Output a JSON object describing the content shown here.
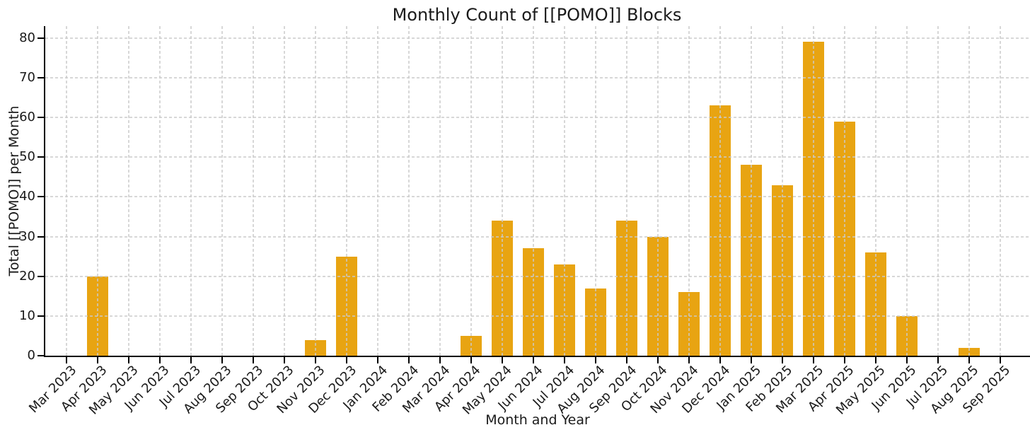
{
  "chart_data": {
    "type": "bar",
    "title": "Monthly Count of [[POMO]] Blocks",
    "xlabel": "Month and Year",
    "ylabel": "Total [[POMO]] per Month",
    "categories": [
      "Mar 2023",
      "Apr 2023",
      "May 2023",
      "Jun 2023",
      "Jul 2023",
      "Aug 2023",
      "Sep 2023",
      "Oct 2023",
      "Nov 2023",
      "Dec 2023",
      "Jan 2024",
      "Feb 2024",
      "Mar 2024",
      "Apr 2024",
      "May 2024",
      "Jun 2024",
      "Jul 2024",
      "Aug 2024",
      "Sep 2024",
      "Oct 2024",
      "Nov 2024",
      "Dec 2024",
      "Jan 2025",
      "Feb 2025",
      "Mar 2025",
      "Apr 2025",
      "May 2025",
      "Jun 2025",
      "Jul 2025",
      "Aug 2025",
      "Sep 2025"
    ],
    "values": [
      0,
      20,
      0,
      0,
      0,
      0,
      0,
      0,
      4,
      25,
      0,
      0,
      0,
      5,
      34,
      27,
      23,
      17,
      34,
      30,
      16,
      63,
      48,
      43,
      79,
      59,
      26,
      10,
      0,
      2,
      0
    ],
    "yticks": [
      0,
      10,
      20,
      30,
      40,
      50,
      60,
      70,
      80
    ],
    "ylim": [
      0,
      83
    ],
    "grid": true,
    "legend": null,
    "bar_color": "#E8A412",
    "grid_color": "#cccccc",
    "axis_color": "#000000",
    "text_color": "#1a1a1a",
    "background": "#ffffff"
  }
}
